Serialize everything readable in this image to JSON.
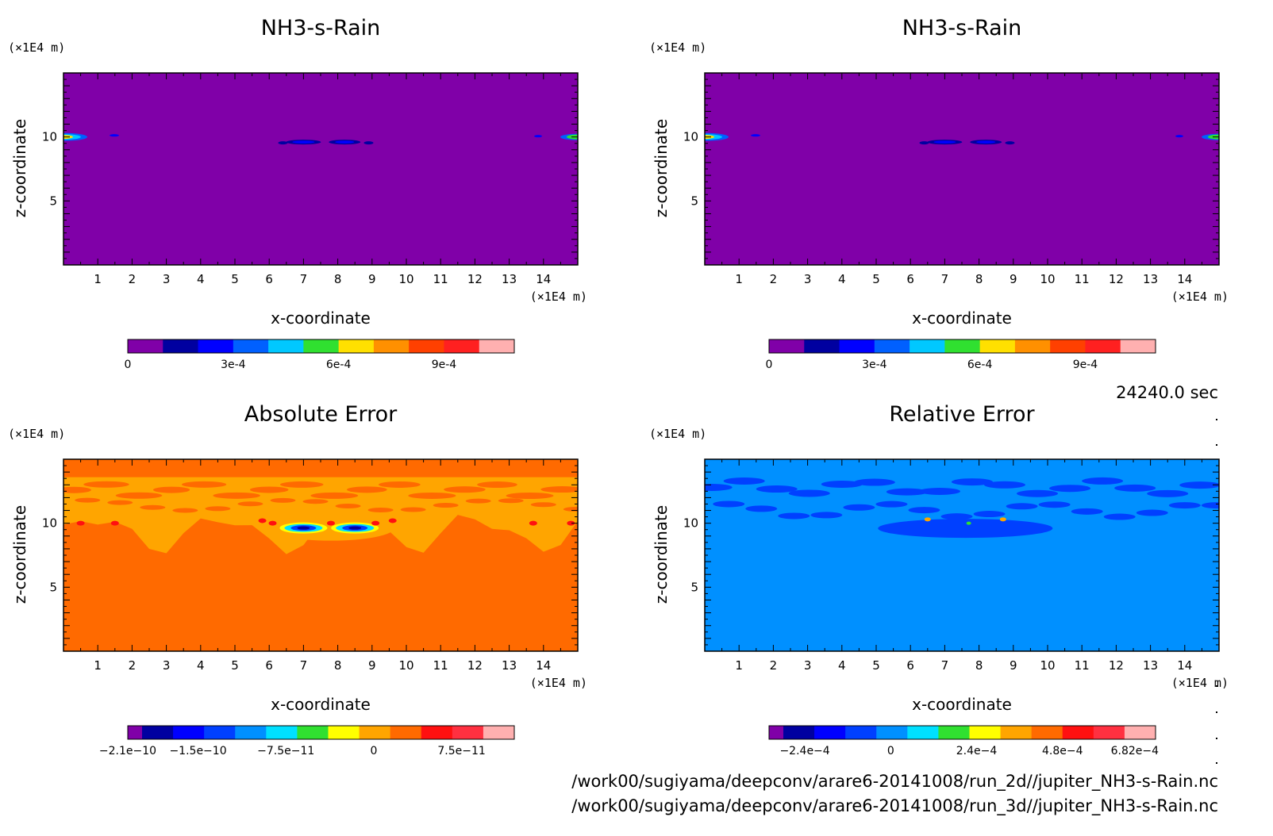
{
  "chart_data": [
    {
      "type": "heatmap",
      "title": "NH3-s-Rain",
      "xlabel": "x-coordinate",
      "ylabel": "z-coordinate",
      "x_unit": "(×1E4 m)",
      "y_unit": "(×1E4 m)",
      "xlim": [
        0,
        15
      ],
      "ylim": [
        0,
        15
      ],
      "x_ticks": [
        1,
        2,
        3,
        4,
        5,
        6,
        7,
        8,
        9,
        10,
        11,
        12,
        13,
        14
      ],
      "y_ticks": [
        5,
        10
      ],
      "colorbar_colors": [
        "#8000a8",
        "#0000a0",
        "#0000ff",
        "#0060ff",
        "#00c8ff",
        "#30e030",
        "#ffe000",
        "#ff9000",
        "#ff4000",
        "#ff2020",
        "#ffb0b0"
      ],
      "colorbar_ticks": [
        "0",
        "3e-4",
        "6e-4",
        "9e-4"
      ],
      "colorbar_tick_values": [
        0,
        0.0003,
        0.0006,
        0.0009
      ],
      "colorbar_range": [
        0,
        0.0011
      ],
      "background_color": "#8000a8",
      "features": [
        {
          "x": 0.15,
          "z": 10,
          "value": 0.0006
        },
        {
          "x": 14.85,
          "z": 10,
          "value": 0.0006
        },
        {
          "x": 7.0,
          "z": 9.6,
          "value": 0.0002
        },
        {
          "x": 8.2,
          "z": 9.6,
          "value": 0.0002
        }
      ]
    },
    {
      "type": "heatmap",
      "title": "NH3-s-Rain",
      "xlabel": "x-coordinate",
      "ylabel": "z-coordinate",
      "x_unit": "(×1E4 m)",
      "y_unit": "(×1E4 m)",
      "xlim": [
        0,
        15
      ],
      "ylim": [
        0,
        15
      ],
      "x_ticks": [
        1,
        2,
        3,
        4,
        5,
        6,
        7,
        8,
        9,
        10,
        11,
        12,
        13,
        14
      ],
      "y_ticks": [
        5,
        10
      ],
      "colorbar_colors": [
        "#8000a8",
        "#0000a0",
        "#0000ff",
        "#0060ff",
        "#00c8ff",
        "#30e030",
        "#ffe000",
        "#ff9000",
        "#ff4000",
        "#ff2020",
        "#ffb0b0"
      ],
      "colorbar_ticks": [
        "0",
        "3e-4",
        "6e-4",
        "9e-4"
      ],
      "colorbar_tick_values": [
        0,
        0.0003,
        0.0006,
        0.0009
      ],
      "colorbar_range": [
        0,
        0.0011
      ],
      "background_color": "#8000a8",
      "features": [
        {
          "x": 0.15,
          "z": 10,
          "value": 0.0006
        },
        {
          "x": 14.85,
          "z": 10,
          "value": 0.0006
        },
        {
          "x": 7.0,
          "z": 9.6,
          "value": 0.0002
        },
        {
          "x": 8.2,
          "z": 9.6,
          "value": 0.0002
        }
      ]
    },
    {
      "type": "heatmap",
      "title": "Absolute Error",
      "xlabel": "x-coordinate",
      "ylabel": "z-coordinate",
      "x_unit": "(×1E4 m)",
      "y_unit": "(×1E4 m)",
      "xlim": [
        0,
        15
      ],
      "ylim": [
        0,
        15
      ],
      "x_ticks": [
        1,
        2,
        3,
        4,
        5,
        6,
        7,
        8,
        9,
        10,
        11,
        12,
        13,
        14
      ],
      "y_ticks": [
        5,
        10
      ],
      "colorbar_colors": [
        "#8000a8",
        "#0000a0",
        "#0000ff",
        "#0040ff",
        "#0090ff",
        "#00e0ff",
        "#30e030",
        "#ffff00",
        "#ffa500",
        "#ff6a00",
        "#ff1010",
        "#ff3040",
        "#ffb0b0"
      ],
      "colorbar_ticks": [
        "−2.1e−10",
        "−1.5e−10",
        "−7.5e−11",
        "0",
        "7.5e−11"
      ],
      "colorbar_tick_values": [
        -2.1e-10,
        -1.5e-10,
        -7.5e-11,
        0,
        7.5e-11
      ],
      "colorbar_range": [
        -2.1e-10,
        1.2e-10
      ],
      "background_color": "#ff6a00"
    },
    {
      "type": "heatmap",
      "title": "Relative Error",
      "xlabel": "x-coordinate",
      "ylabel": "z-coordinate",
      "x_unit": "(×1E4 m)",
      "y_unit": "(×1E4 m)",
      "xlim": [
        0,
        15
      ],
      "ylim": [
        0,
        15
      ],
      "x_ticks": [
        1,
        2,
        3,
        4,
        5,
        6,
        7,
        8,
        9,
        10,
        11,
        12,
        13,
        14
      ],
      "y_ticks": [
        5,
        10
      ],
      "colorbar_colors": [
        "#8000a8",
        "#0000a0",
        "#0000ff",
        "#0040ff",
        "#0090ff",
        "#00e0ff",
        "#30e030",
        "#ffff00",
        "#ffa500",
        "#ff6a00",
        "#ff1010",
        "#ff3040",
        "#ffb0b0"
      ],
      "colorbar_ticks": [
        "−2.4e−4",
        "0",
        "2.4e−4",
        "4.8e−4",
        "6.82e−4"
      ],
      "colorbar_tick_values": [
        -0.00024,
        0,
        0.00024,
        0.00048,
        0.000682
      ],
      "colorbar_range": [
        -0.00034,
        0.00074
      ],
      "background_color": "#0090ff"
    }
  ],
  "time_label": "24240.0 sec",
  "file_paths": [
    "/work00/sugiyama/deepconv/arare6-20141008/run_2d//jupiter_NH3-s-Rain.nc",
    "/work00/sugiyama/deepconv/arare6-20141008/run_3d//jupiter_NH3-s-Rain.nc"
  ]
}
